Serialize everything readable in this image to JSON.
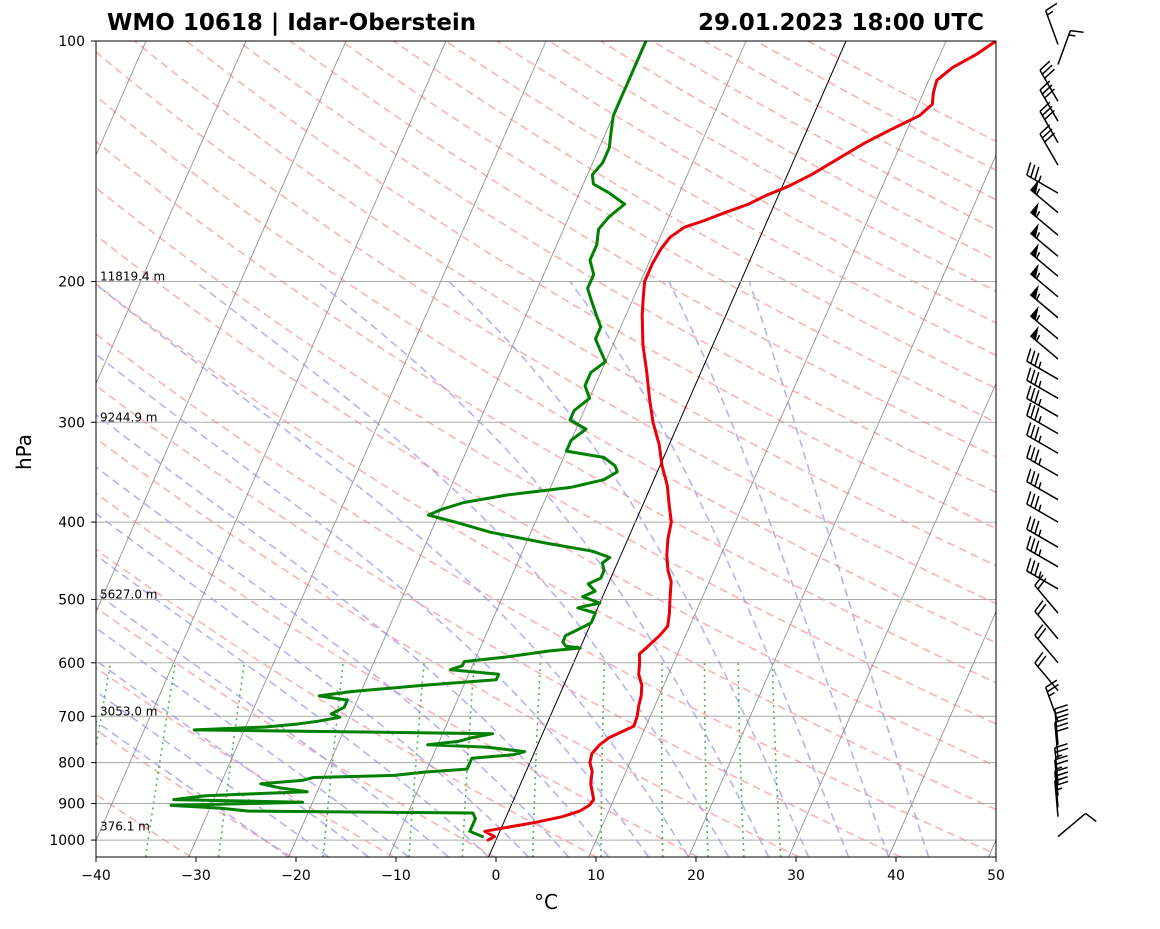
{
  "title_left": "WMO 10618 | Idar-Oberstein",
  "title_right": "29.01.2023 18:00 UTC",
  "chart_data": {
    "type": "line",
    "subtype": "skew-T log-p sounding",
    "xlabel": "°C",
    "ylabel": "hPa",
    "xlim": [
      -40,
      50
    ],
    "ylim_hpa": [
      1050,
      100
    ],
    "y_scale": "log",
    "grid": true,
    "x_ticks": [
      -40,
      -30,
      -20,
      -10,
      0,
      10,
      20,
      30,
      40,
      50
    ],
    "y_ticks": [
      100,
      200,
      300,
      400,
      500,
      600,
      700,
      800,
      900,
      1000
    ],
    "height_labels": [
      {
        "pressure": 200,
        "text": "11819.4 m"
      },
      {
        "pressure": 300,
        "text": "9244.9 m"
      },
      {
        "pressure": 500,
        "text": "5627.0 m"
      },
      {
        "pressure": 700,
        "text": "3053.0 m"
      },
      {
        "pressure": 975,
        "text": "376.1 m"
      }
    ],
    "colors": {
      "temperature": "#e8000b",
      "dewpoint": "#008000",
      "dry_adiabat": "#f59a9a",
      "moist_adiabat": "#9a9af0",
      "mixing_ratio": "#40a040",
      "isotherm": "#888888",
      "zero_isotherm": "#000000",
      "isobar": "#aaaaaa",
      "barb": "#000000"
    },
    "series": [
      {
        "key": "temperature",
        "points": [
          [
            1000,
            -0.8
          ],
          [
            990,
            -0.3
          ],
          [
            975,
            -1.5
          ],
          [
            950,
            3.2
          ],
          [
            935,
            5.6
          ],
          [
            920,
            7.1
          ],
          [
            905,
            7.8
          ],
          [
            890,
            8.0
          ],
          [
            870,
            7.5
          ],
          [
            850,
            7.0
          ],
          [
            820,
            6.6
          ],
          [
            800,
            6.0
          ],
          [
            780,
            5.8
          ],
          [
            760,
            6.2
          ],
          [
            745,
            6.8
          ],
          [
            720,
            8.8
          ],
          [
            700,
            8.7
          ],
          [
            680,
            8.4
          ],
          [
            660,
            8.2
          ],
          [
            640,
            7.8
          ],
          [
            620,
            7.0
          ],
          [
            600,
            6.6
          ],
          [
            585,
            6.2
          ],
          [
            570,
            6.8
          ],
          [
            555,
            7.4
          ],
          [
            540,
            7.8
          ],
          [
            520,
            7.4
          ],
          [
            505,
            7.0
          ],
          [
            490,
            6.6
          ],
          [
            475,
            6.2
          ],
          [
            460,
            5.4
          ],
          [
            440,
            4.6
          ],
          [
            420,
            4.0
          ],
          [
            400,
            3.6
          ],
          [
            380,
            2.6
          ],
          [
            360,
            1.6
          ],
          [
            340,
            0.2
          ],
          [
            320,
            -1.0
          ],
          [
            300,
            -2.6
          ],
          [
            280,
            -4.0
          ],
          [
            260,
            -5.4
          ],
          [
            240,
            -7.0
          ],
          [
            220,
            -8.4
          ],
          [
            210,
            -9.0
          ],
          [
            200,
            -9.6
          ],
          [
            190,
            -9.6
          ],
          [
            182,
            -9.4
          ],
          [
            176,
            -9.0
          ],
          [
            171,
            -8.0
          ],
          [
            168,
            -6.4
          ],
          [
            164,
            -4.6
          ],
          [
            160,
            -2.6
          ],
          [
            156,
            -1.2
          ],
          [
            152,
            0.6
          ],
          [
            147,
            2.4
          ],
          [
            143,
            3.6
          ],
          [
            139,
            4.8
          ],
          [
            134,
            6.4
          ],
          [
            129,
            8.4
          ],
          [
            124,
            10.6
          ],
          [
            120,
            11.4
          ],
          [
            116,
            11.0
          ],
          [
            112,
            10.8
          ],
          [
            108,
            11.8
          ],
          [
            104,
            13.6
          ],
          [
            100,
            15.0
          ]
        ]
      },
      {
        "key": "dewpoint",
        "points": [
          [
            990,
            -1.5
          ],
          [
            975,
            -3.0
          ],
          [
            955,
            -3.0
          ],
          [
            940,
            -3.0
          ],
          [
            925,
            -3.5
          ],
          [
            920,
            -26
          ],
          [
            912,
            -29
          ],
          [
            905,
            -34
          ],
          [
            897,
            -21
          ],
          [
            890,
            -34
          ],
          [
            880,
            -31
          ],
          [
            870,
            -21
          ],
          [
            860,
            -24
          ],
          [
            850,
            -26
          ],
          [
            842,
            -22
          ],
          [
            835,
            -21
          ],
          [
            830,
            -13
          ],
          [
            822,
            -10
          ],
          [
            815,
            -6
          ],
          [
            790,
            -6
          ],
          [
            782,
            -2
          ],
          [
            775,
            -1
          ],
          [
            765,
            -5
          ],
          [
            760,
            -11
          ],
          [
            752,
            -8
          ],
          [
            745,
            -7
          ],
          [
            736,
            -5
          ],
          [
            728,
            -35
          ],
          [
            722,
            -28
          ],
          [
            716,
            -25
          ],
          [
            710,
            -23
          ],
          [
            702,
            -21
          ],
          [
            695,
            -22
          ],
          [
            682,
            -21
          ],
          [
            668,
            -21
          ],
          [
            660,
            -24
          ],
          [
            652,
            -21
          ],
          [
            640,
            -14
          ],
          [
            630,
            -7
          ],
          [
            620,
            -7
          ],
          [
            612,
            -12
          ],
          [
            605,
            -11
          ],
          [
            598,
            -11
          ],
          [
            590,
            -7
          ],
          [
            580,
            -3
          ],
          [
            575,
            0
          ],
          [
            572,
            -1.5
          ],
          [
            565,
            -2
          ],
          [
            555,
            -2
          ],
          [
            545,
            -1
          ],
          [
            535,
            0
          ],
          [
            520,
            0
          ],
          [
            512,
            -2
          ],
          [
            505,
            0
          ],
          [
            496,
            -2
          ],
          [
            488,
            -1
          ],
          [
            478,
            -2
          ],
          [
            470,
            -1
          ],
          [
            460,
            -1
          ],
          [
            450,
            -1.5
          ],
          [
            443,
            -1
          ],
          [
            435,
            -3
          ],
          [
            425,
            -8
          ],
          [
            412,
            -14
          ],
          [
            400,
            -18
          ],
          [
            392,
            -21
          ],
          [
            386,
            -20
          ],
          [
            378,
            -18
          ],
          [
            370,
            -14
          ],
          [
            362,
            -8
          ],
          [
            354,
            -5
          ],
          [
            346,
            -4
          ],
          [
            340,
            -4.5
          ],
          [
            332,
            -6
          ],
          [
            326,
            -10
          ],
          [
            316,
            -10
          ],
          [
            306,
            -9
          ],
          [
            298,
            -11
          ],
          [
            290,
            -11
          ],
          [
            280,
            -10
          ],
          [
            270,
            -11
          ],
          [
            260,
            -11
          ],
          [
            252,
            -10
          ],
          [
            244,
            -11
          ],
          [
            236,
            -12
          ],
          [
            228,
            -12
          ],
          [
            220,
            -13
          ],
          [
            212,
            -14
          ],
          [
            204,
            -15
          ],
          [
            196,
            -15
          ],
          [
            188,
            -16
          ],
          [
            180,
            -16
          ],
          [
            172,
            -16.5
          ],
          [
            166,
            -16
          ],
          [
            160,
            -15
          ],
          [
            155,
            -17
          ],
          [
            151,
            -19
          ],
          [
            147,
            -19.5
          ],
          [
            142,
            -19
          ],
          [
            136,
            -19
          ],
          [
            130,
            -19.5
          ],
          [
            124,
            -20
          ],
          [
            118,
            -20
          ],
          [
            112,
            -20
          ],
          [
            106,
            -20
          ],
          [
            100,
            -20
          ]
        ]
      }
    ],
    "wind_barbs": [
      {
        "pressure": 990,
        "direction_deg": 50,
        "speed_kt": 10
      },
      {
        "pressure": 935,
        "direction_deg": 355,
        "speed_kt": 25
      },
      {
        "pressure": 910,
        "direction_deg": 355,
        "speed_kt": 25
      },
      {
        "pressure": 880,
        "direction_deg": 355,
        "speed_kt": 25
      },
      {
        "pressure": 850,
        "direction_deg": 355,
        "speed_kt": 25
      },
      {
        "pressure": 790,
        "direction_deg": 355,
        "speed_kt": 30
      },
      {
        "pressure": 760,
        "direction_deg": 355,
        "speed_kt": 30
      },
      {
        "pressure": 710,
        "direction_deg": 340,
        "speed_kt": 25
      },
      {
        "pressure": 650,
        "direction_deg": 320,
        "speed_kt": 20
      },
      {
        "pressure": 600,
        "direction_deg": 320,
        "speed_kt": 20
      },
      {
        "pressure": 560,
        "direction_deg": 320,
        "speed_kt": 20
      },
      {
        "pressure": 520,
        "direction_deg": 320,
        "speed_kt": 20
      },
      {
        "pressure": 485,
        "direction_deg": 300,
        "speed_kt": 35
      },
      {
        "pressure": 455,
        "direction_deg": 300,
        "speed_kt": 35
      },
      {
        "pressure": 430,
        "direction_deg": 300,
        "speed_kt": 35
      },
      {
        "pressure": 400,
        "direction_deg": 300,
        "speed_kt": 35
      },
      {
        "pressure": 375,
        "direction_deg": 300,
        "speed_kt": 35
      },
      {
        "pressure": 350,
        "direction_deg": 300,
        "speed_kt": 35
      },
      {
        "pressure": 328,
        "direction_deg": 300,
        "speed_kt": 35
      },
      {
        "pressure": 310,
        "direction_deg": 300,
        "speed_kt": 35
      },
      {
        "pressure": 295,
        "direction_deg": 300,
        "speed_kt": 35
      },
      {
        "pressure": 280,
        "direction_deg": 300,
        "speed_kt": 35
      },
      {
        "pressure": 265,
        "direction_deg": 300,
        "speed_kt": 35
      },
      {
        "pressure": 250,
        "direction_deg": 310,
        "speed_kt": 55
      },
      {
        "pressure": 236,
        "direction_deg": 310,
        "speed_kt": 55
      },
      {
        "pressure": 222,
        "direction_deg": 310,
        "speed_kt": 55
      },
      {
        "pressure": 209,
        "direction_deg": 310,
        "speed_kt": 55
      },
      {
        "pressure": 197,
        "direction_deg": 310,
        "speed_kt": 55
      },
      {
        "pressure": 186,
        "direction_deg": 310,
        "speed_kt": 55
      },
      {
        "pressure": 175,
        "direction_deg": 310,
        "speed_kt": 55
      },
      {
        "pressure": 164,
        "direction_deg": 310,
        "speed_kt": 55
      },
      {
        "pressure": 155,
        "direction_deg": 300,
        "speed_kt": 35
      },
      {
        "pressure": 143,
        "direction_deg": 330,
        "speed_kt": 30
      },
      {
        "pressure": 134,
        "direction_deg": 330,
        "speed_kt": 30
      },
      {
        "pressure": 126,
        "direction_deg": 330,
        "speed_kt": 30
      },
      {
        "pressure": 119,
        "direction_deg": 330,
        "speed_kt": 30
      },
      {
        "pressure": 107,
        "direction_deg": 20,
        "speed_kt": 15
      },
      {
        "pressure": 101,
        "direction_deg": 340,
        "speed_kt": 15
      }
    ]
  }
}
